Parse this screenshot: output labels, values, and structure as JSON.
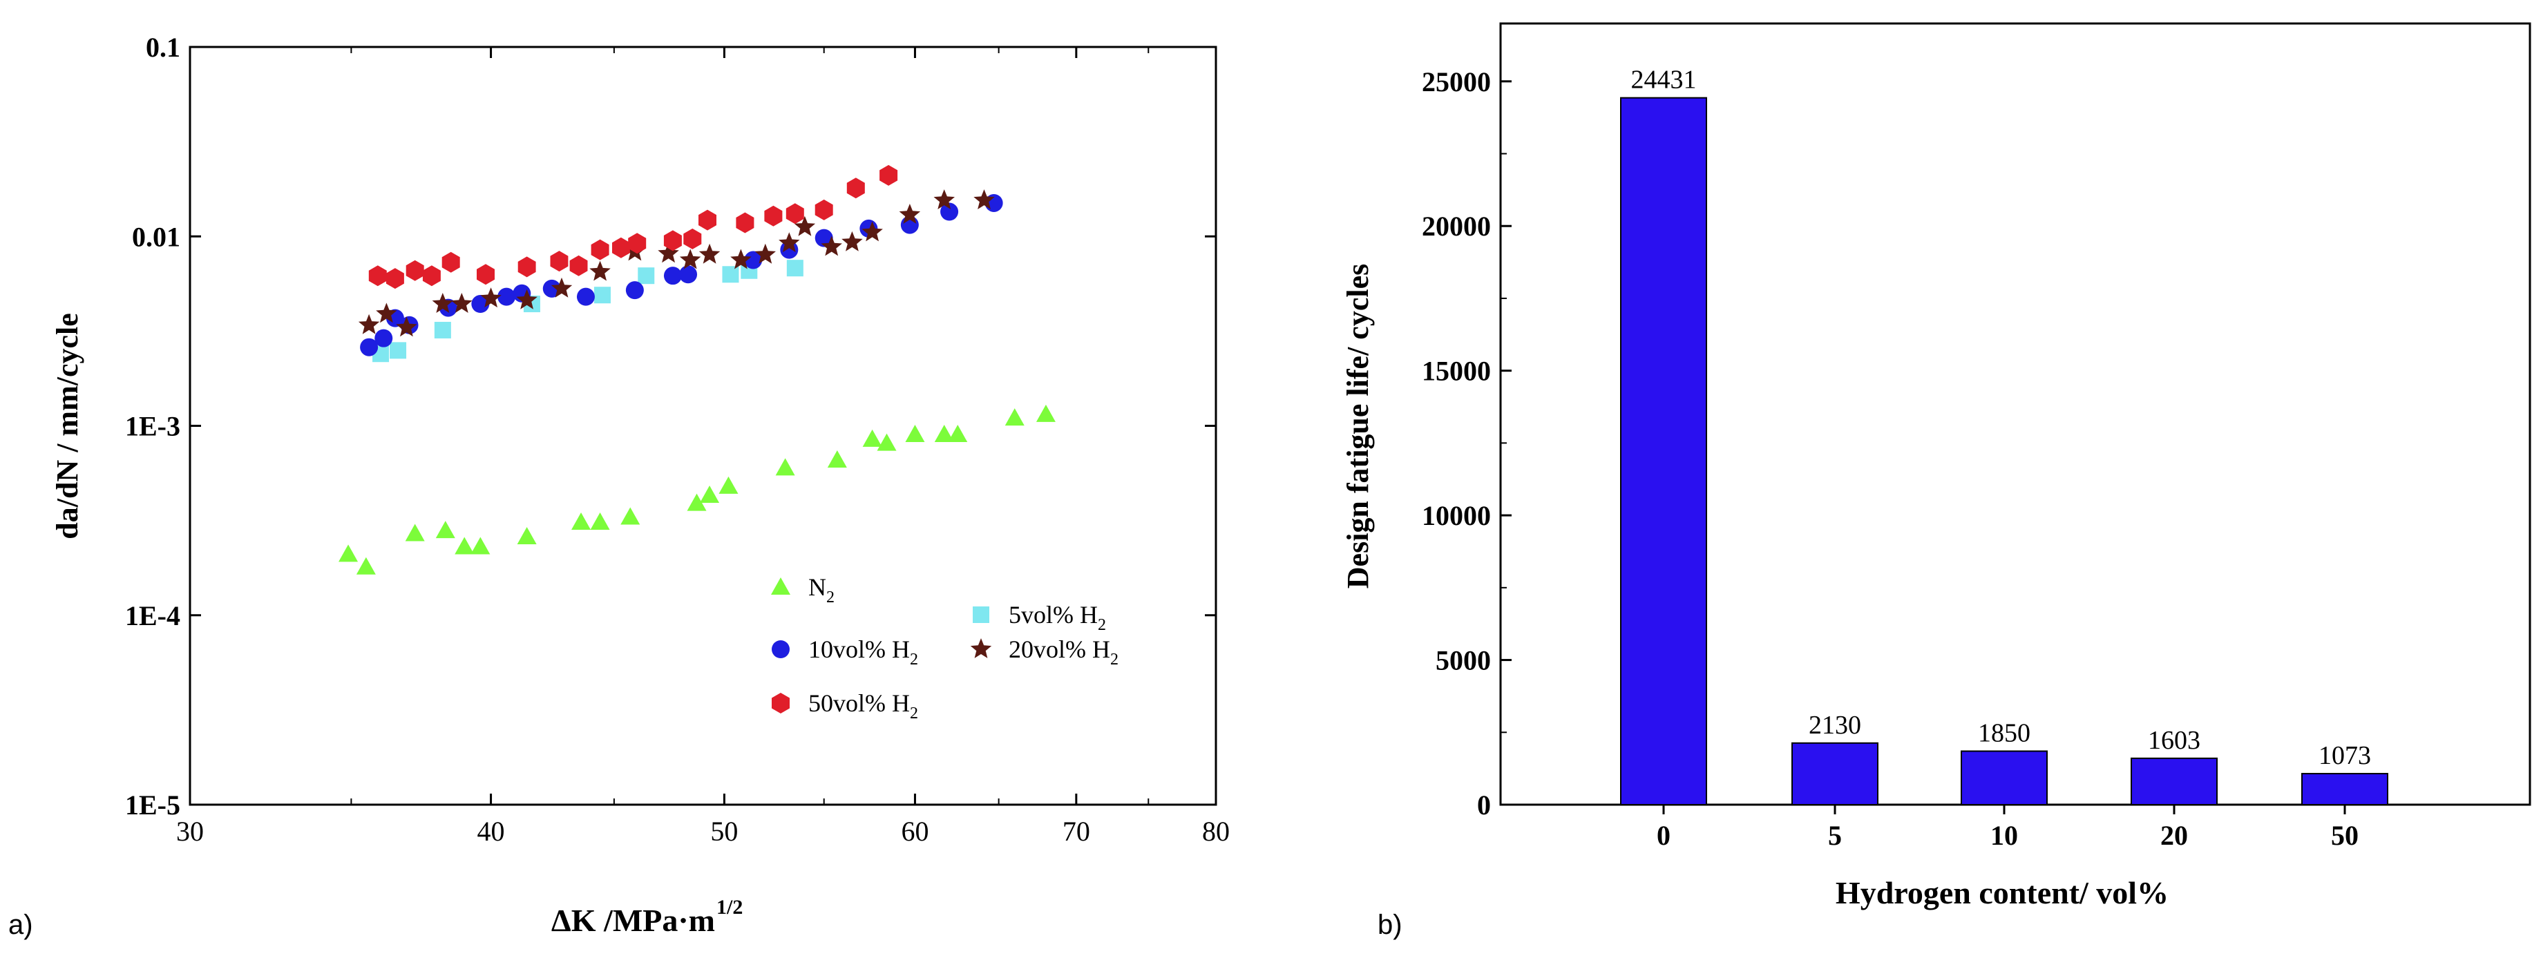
{
  "panel_labels": {
    "a": "a)",
    "b": "b)"
  },
  "chart_data": [
    {
      "type": "scatter",
      "title": "",
      "xlabel": "ΔK /MPa·m",
      "xlabel_sup": "1/2",
      "ylabel": "da/dN / mm/cycle",
      "xscale": "log",
      "yscale": "log",
      "xlim": [
        30,
        80
      ],
      "ylim": [
        1e-05,
        0.1
      ],
      "x_ticks": [
        30,
        40,
        50,
        60,
        70,
        80
      ],
      "x_tick_labels": [
        "30",
        "40",
        "50",
        "60",
        "70",
        "80"
      ],
      "y_ticks": [
        1e-05,
        0.0001,
        0.001,
        0.01,
        0.1
      ],
      "y_tick_labels": [
        "1E-5",
        "1E-4",
        "1E-3",
        "0.01",
        "0.1"
      ],
      "legend_position": "bottom-right",
      "series": [
        {
          "name": "N",
          "sub": "2",
          "marker": "triangle",
          "color": "#7CFC3A",
          "points": [
            [
              34.9,
              0.00021
            ],
            [
              35.5,
              0.00018
            ],
            [
              37.2,
              0.00027
            ],
            [
              38.3,
              0.00028
            ],
            [
              39.0,
              0.00023
            ],
            [
              39.6,
              0.00023
            ],
            [
              41.4,
              0.00026
            ],
            [
              43.6,
              0.00031
            ],
            [
              44.4,
              0.00031
            ],
            [
              45.7,
              0.00033
            ],
            [
              48.7,
              0.00039
            ],
            [
              49.3,
              0.00043
            ],
            [
              50.2,
              0.00048
            ],
            [
              53.0,
              0.0006
            ],
            [
              55.7,
              0.00066
            ],
            [
              57.6,
              0.00085
            ],
            [
              58.4,
              0.00081
            ],
            [
              60.0,
              0.0009
            ],
            [
              61.7,
              0.0009
            ],
            [
              62.5,
              0.0009
            ],
            [
              66.0,
              0.0011
            ],
            [
              68.0,
              0.00115
            ]
          ]
        },
        {
          "name": "5vol% H",
          "sub": "2",
          "marker": "square",
          "color": "#7FE7F0",
          "points": [
            [
              36.0,
              0.0024
            ],
            [
              36.6,
              0.0025
            ],
            [
              38.2,
              0.0032
            ],
            [
              41.6,
              0.0044
            ],
            [
              44.5,
              0.0049
            ],
            [
              46.4,
              0.0062
            ],
            [
              50.3,
              0.0063
            ],
            [
              51.2,
              0.0066
            ],
            [
              53.5,
              0.0068
            ]
          ]
        },
        {
          "name": "10vol% H",
          "sub": "2",
          "marker": "circle",
          "color": "#1E1EE0",
          "points": [
            [
              35.6,
              0.0026
            ],
            [
              36.1,
              0.0029
            ],
            [
              36.5,
              0.0037
            ],
            [
              37.0,
              0.0034
            ],
            [
              38.4,
              0.0042
            ],
            [
              39.6,
              0.0044
            ],
            [
              40.6,
              0.0048
            ],
            [
              41.2,
              0.005
            ],
            [
              42.4,
              0.0053
            ],
            [
              43.8,
              0.0048
            ],
            [
              45.9,
              0.0052
            ],
            [
              47.6,
              0.0062
            ],
            [
              48.3,
              0.0063
            ],
            [
              51.4,
              0.0075
            ],
            [
              53.2,
              0.0085
            ],
            [
              55.0,
              0.0098
            ],
            [
              57.4,
              0.011
            ],
            [
              59.7,
              0.0115
            ],
            [
              62.0,
              0.0135
            ],
            [
              64.7,
              0.015
            ]
          ]
        },
        {
          "name": "20vol% H",
          "sub": "2",
          "marker": "star",
          "color": "#5A1A12",
          "points": [
            [
              35.6,
              0.0034
            ],
            [
              36.2,
              0.0039
            ],
            [
              36.9,
              0.0033
            ],
            [
              38.2,
              0.0044
            ],
            [
              38.9,
              0.0044
            ],
            [
              40.0,
              0.0047
            ],
            [
              41.4,
              0.0046
            ],
            [
              42.8,
              0.0053
            ],
            [
              44.4,
              0.0065
            ],
            [
              45.9,
              0.0083
            ],
            [
              47.4,
              0.0081
            ],
            [
              48.4,
              0.0075
            ],
            [
              49.3,
              0.008
            ],
            [
              50.8,
              0.0075
            ],
            [
              52.0,
              0.008
            ],
            [
              53.2,
              0.0092
            ],
            [
              54.0,
              0.0112
            ],
            [
              55.4,
              0.0088
            ],
            [
              56.5,
              0.0093
            ],
            [
              57.6,
              0.0105
            ],
            [
              59.7,
              0.013
            ],
            [
              61.7,
              0.0155
            ],
            [
              64.1,
              0.0155
            ]
          ]
        },
        {
          "name": "50vol% H",
          "sub": "2",
          "marker": "hexagon",
          "color": "#E01E2A",
          "points": [
            [
              35.9,
              0.0062
            ],
            [
              36.5,
              0.006
            ],
            [
              37.2,
              0.0066
            ],
            [
              37.8,
              0.0062
            ],
            [
              38.5,
              0.0073
            ],
            [
              39.8,
              0.0063
            ],
            [
              41.4,
              0.0069
            ],
            [
              42.7,
              0.0074
            ],
            [
              43.5,
              0.007
            ],
            [
              44.4,
              0.0085
            ],
            [
              45.3,
              0.0087
            ],
            [
              46.0,
              0.0092
            ],
            [
              47.6,
              0.0095
            ],
            [
              48.5,
              0.0097
            ],
            [
              49.2,
              0.0122
            ],
            [
              51.0,
              0.0118
            ],
            [
              52.4,
              0.0128
            ],
            [
              53.5,
              0.0132
            ],
            [
              55.0,
              0.0138
            ],
            [
              56.7,
              0.018
            ],
            [
              58.5,
              0.021
            ]
          ]
        }
      ]
    },
    {
      "type": "bar",
      "title": "",
      "xlabel": "Hydrogen content/ vol%",
      "ylabel": "Design fatigue life/ cycles",
      "categories": [
        "0",
        "5",
        "10",
        "20",
        "50"
      ],
      "values": [
        24431,
        2130,
        1850,
        1603,
        1073
      ],
      "data_labels": [
        "24431",
        "2130",
        "1850",
        "1603",
        "1073"
      ],
      "ylim": [
        0,
        27000
      ],
      "y_ticks": [
        0,
        5000,
        10000,
        15000,
        20000,
        25000
      ],
      "y_tick_labels": [
        "0",
        "5000",
        "10000",
        "15000",
        "20000",
        "25000"
      ],
      "bar_color": "#2A10F0"
    }
  ]
}
